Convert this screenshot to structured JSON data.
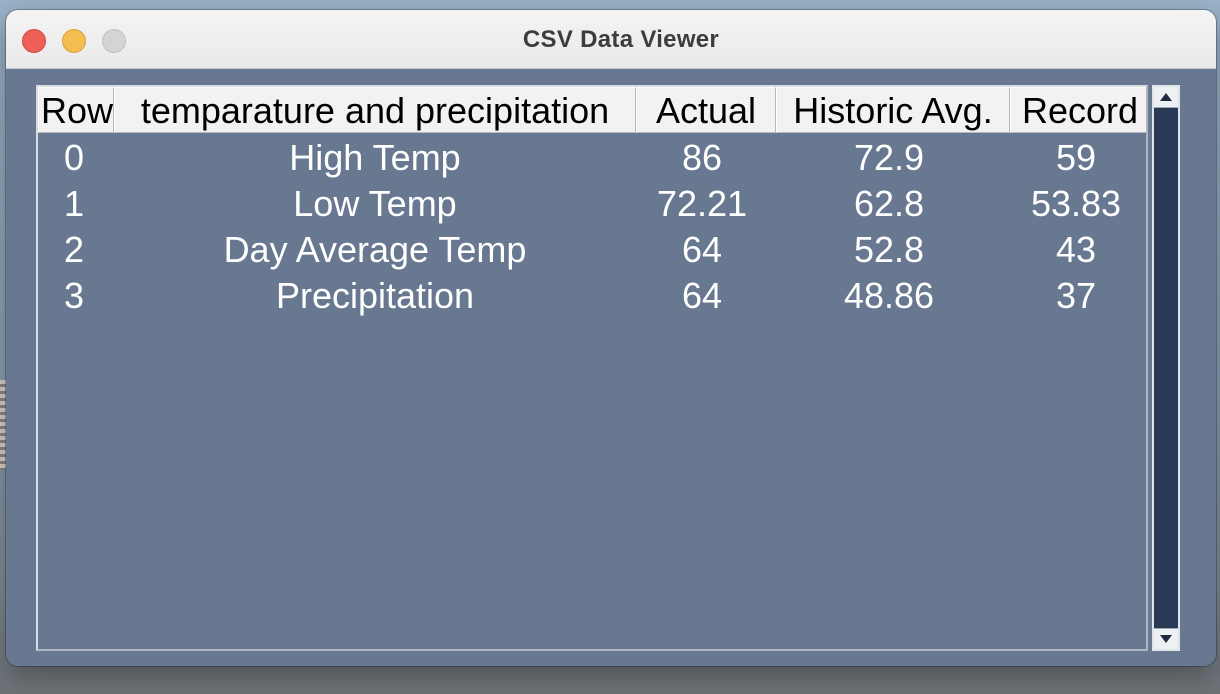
{
  "window": {
    "title": "CSV Data Viewer"
  },
  "table": {
    "headers": [
      "Row",
      "temparature and precipitation",
      "Actual",
      "Historic Avg.",
      "Record"
    ],
    "rows": [
      [
        "0",
        "High Temp",
        "86",
        "72.9",
        "59"
      ],
      [
        "1",
        "Low Temp",
        "72.21",
        "62.8",
        "53.83"
      ],
      [
        "2",
        "Day Average Temp",
        "64",
        "52.8",
        "43"
      ],
      [
        "3",
        "Precipitation",
        "64",
        "48.86",
        "37"
      ]
    ]
  },
  "icons": {
    "close": "close-traffic-light-icon",
    "minimize": "minimize-traffic-light-icon",
    "zoom": "zoom-traffic-light-icon",
    "scroll_up": "chevron-up-icon",
    "scroll_down": "chevron-down-icon"
  },
  "colors": {
    "content_background": "#687890",
    "header_background": "#f2f2f2",
    "cell_text": "#ffffff",
    "scrollbar_track": "#2a3a56",
    "close": "#ed5f57",
    "minimize": "#f4bd4f",
    "zoom": "#d4d4d4"
  }
}
